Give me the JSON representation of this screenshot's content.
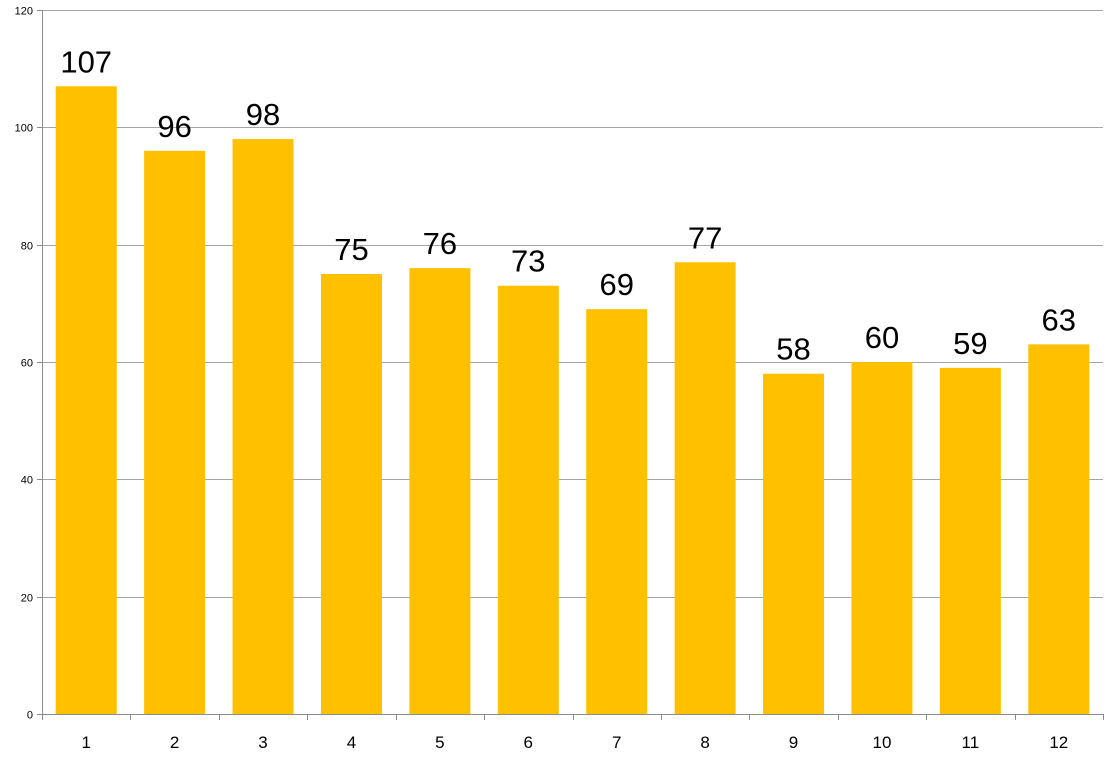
{
  "chart_data": {
    "type": "bar",
    "title": "",
    "xlabel": "",
    "ylabel": "",
    "categories": [
      "1",
      "2",
      "3",
      "4",
      "5",
      "6",
      "7",
      "8",
      "9",
      "10",
      "11",
      "12"
    ],
    "values": [
      107,
      96,
      98,
      75,
      76,
      73,
      69,
      77,
      58,
      60,
      59,
      63
    ],
    "data_labels": [
      "107",
      "96",
      "98",
      "75",
      "76",
      "73",
      "69",
      "77",
      "58",
      "60",
      "59",
      "63"
    ],
    "ylim": [
      0,
      120
    ],
    "y_ticks": [
      0,
      20,
      40,
      60,
      80,
      100,
      120
    ],
    "y_tick_labels": [
      "0",
      "20",
      "40",
      "60",
      "80",
      "100",
      "120"
    ],
    "grid": true,
    "legend": "none",
    "bar_color": "#FFC000",
    "grid_color": "#A6A6A6"
  }
}
